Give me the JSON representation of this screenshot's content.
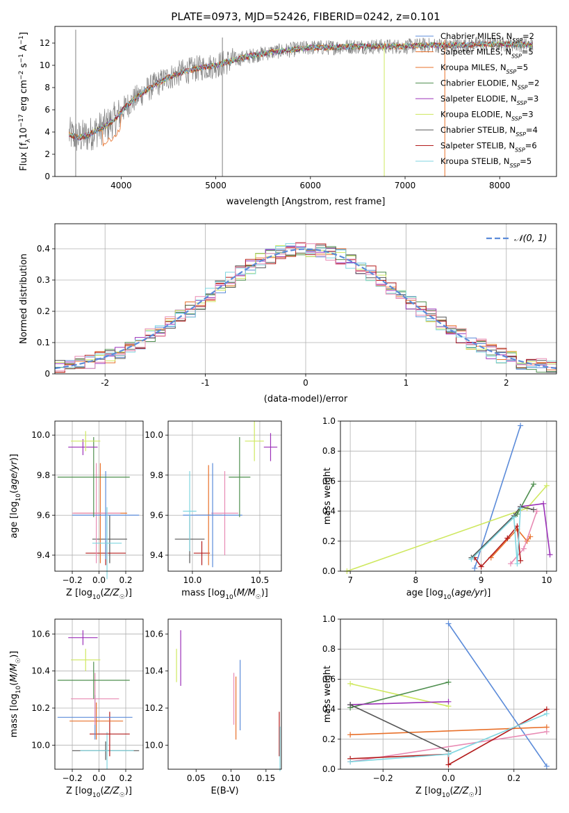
{
  "figure": {
    "title": "PLATE=0973, MJD=52426, FIBERID=0242, z=0.101"
  },
  "model_colors": {
    "Chabrier MILES": "#5b8bd9",
    "Salpeter MILES": "#e8702a",
    "Kroupa MILES": "#e8702a",
    "Chabrier ELODIE": "#4f8f4f",
    "Salpeter ELODIE": "#9b30b8",
    "Kroupa ELODIE": "#cfe860",
    "Chabrier STELIB": "#555555",
    "Salpeter STELIB": "#b31b1b",
    "Kroupa STELIB": "#7fd6e0",
    "extra_pink": "#e88ab3",
    "data_spectrum": "#808080"
  },
  "chart_data": [
    {
      "id": "spectrum",
      "type": "line",
      "title": "PLATE=0973, MJD=52426, FIBERID=0242, z=0.101",
      "xlabel": "wavelength [Angstrom, rest frame]",
      "ylabel": "Flux [f_λ10^-17 erg cm^-2 s^-1 A^-1]",
      "xlim": [
        3300,
        8600
      ],
      "ylim": [
        0,
        13.5
      ],
      "xticks": [
        4000,
        5000,
        6000,
        7000,
        8000
      ],
      "yticks": [
        0,
        2,
        4,
        6,
        8,
        10,
        12
      ],
      "grid": false,
      "legend_position": "top-right",
      "legend": [
        {
          "label": "Chabrier MILES, N",
          "sub": "SSP",
          "n": "=2",
          "color": "#5b8bd9"
        },
        {
          "label": "Salpeter MILES, N",
          "sub": "SSP",
          "n": "=5",
          "color": "#e8702a"
        },
        {
          "label": "Kroupa MILES, N",
          "sub": "SSP",
          "n": "=5",
          "color": "#e8702a"
        },
        {
          "label": "Chabrier ELODIE, N",
          "sub": "SSP",
          "n": "=2",
          "color": "#4f8f4f"
        },
        {
          "label": "Salpeter ELODIE, N",
          "sub": "SSP",
          "n": "=3",
          "color": "#9b30b8"
        },
        {
          "label": "Kroupa ELODIE, N",
          "sub": "SSP",
          "n": "=3",
          "color": "#cfe860"
        },
        {
          "label": "Chabrier STELIB, N",
          "sub": "SSP",
          "n": "=4",
          "color": "#555555"
        },
        {
          "label": "Salpeter STELIB, N",
          "sub": "SSP",
          "n": "=6",
          "color": "#b31b1b"
        },
        {
          "label": "Kroupa STELIB, N",
          "sub": "SSP",
          "n": "=5",
          "color": "#7fd6e0"
        }
      ],
      "continuum_x": [
        3450,
        3550,
        3650,
        3750,
        3850,
        3950,
        4050,
        4150,
        4250,
        4350,
        4500,
        4650,
        4800,
        5000,
        5200,
        5400,
        5600,
        5800,
        6000,
        6200,
        6400,
        6600,
        6800,
        7000,
        7200,
        7400,
        7600,
        7800,
        8000,
        8200,
        8350
      ],
      "continuum_y": [
        3.8,
        3.5,
        3.7,
        4.2,
        4.6,
        5.3,
        6.3,
        7.0,
        7.7,
        8.2,
        8.9,
        9.4,
        9.7,
        10.0,
        10.5,
        10.9,
        11.2,
        11.4,
        11.6,
        11.6,
        11.7,
        11.7,
        11.7,
        11.7,
        11.8,
        11.8,
        11.8,
        11.9,
        11.9,
        11.9,
        11.8
      ],
      "spikes": [
        {
          "x": 3520,
          "y0": 0,
          "y1": 13.2,
          "color": "#808080"
        },
        {
          "x": 5070,
          "y0": 0,
          "y1": 12.5,
          "color": "#808080"
        },
        {
          "x": 6780,
          "y0": 0,
          "y1": 12.0,
          "color": "#cfe860"
        },
        {
          "x": 7420,
          "y0": 0,
          "y1": 12.3,
          "color": "#e8702a"
        }
      ]
    },
    {
      "id": "residual_histogram",
      "type": "histogram",
      "xlabel": "(data-model)/error",
      "ylabel": "Normed distribution",
      "xlim": [
        -2.5,
        2.5
      ],
      "ylim": [
        0,
        0.48
      ],
      "xticks": [
        -2,
        -1,
        0,
        1,
        2
      ],
      "yticks": [
        0.0,
        0.1,
        0.2,
        0.3,
        0.4
      ],
      "grid": true,
      "legend_position": "top-right",
      "reference_curve": {
        "label": "N(0,1)",
        "color": "#5b8bd9",
        "style": "dashed"
      },
      "bin_width": 0.1,
      "bin_start": -2.5
    },
    {
      "id": "age_vs_Z",
      "type": "errorbar",
      "xlabel": "Z [log10(Z/Z☉)]",
      "ylabel": "age  [log10(age/yr)]",
      "xlim": [
        -0.33,
        0.33
      ],
      "ylim": [
        9.32,
        10.07
      ],
      "xticks": [
        -0.2,
        0.0,
        0.2
      ],
      "xticklabels": [
        "−0.2",
        "0.0",
        "0.2"
      ],
      "yticks": [
        9.4,
        9.6,
        9.8,
        10.0
      ],
      "grid": true,
      "points": [
        {
          "x": 0.08,
          "y": 9.48,
          "xerr": 0.13,
          "yerr": 0.12,
          "color": "#555555"
        },
        {
          "x": 0.05,
          "y": 9.41,
          "xerr": 0.15,
          "yerr": 0.06,
          "color": "#b31b1b"
        },
        {
          "x": 0.01,
          "y": 9.61,
          "xerr": 0.2,
          "yerr": 0.25,
          "color": "#e8702a"
        },
        {
          "x": -0.02,
          "y": 9.61,
          "xerr": 0.18,
          "yerr": 0.25,
          "color": "#e88ab3"
        },
        {
          "x": 0.05,
          "y": 9.6,
          "xerr": 0.25,
          "yerr": 0.22,
          "color": "#5b8bd9"
        },
        {
          "x": 0.06,
          "y": 9.46,
          "xerr": 0.11,
          "yerr": 0.18,
          "color": "#7fd6e0"
        },
        {
          "x": -0.04,
          "y": 9.79,
          "xerr": 0.27,
          "yerr": 0.2,
          "color": "#4f8f4f"
        },
        {
          "x": -0.12,
          "y": 9.94,
          "xerr": 0.11,
          "yerr": 0.04,
          "color": "#9b30b8"
        },
        {
          "x": -0.1,
          "y": 9.97,
          "xerr": 0.11,
          "yerr": 0.05,
          "color": "#cfe860"
        }
      ]
    },
    {
      "id": "age_vs_mass",
      "type": "errorbar",
      "xlabel": "mass [log10(M/M☉)]",
      "ylabel": "",
      "xlim": [
        9.82,
        10.66
      ],
      "ylim": [
        9.32,
        10.07
      ],
      "xticks": [
        10.0,
        10.5
      ],
      "xticklabels": [
        "10.0",
        "10.5"
      ],
      "yticks": [
        9.4,
        9.6,
        9.8,
        10.0
      ],
      "grid": true,
      "points": [
        {
          "x": 9.98,
          "y": 9.48,
          "xerr": 0.11,
          "yerr": 0.12,
          "color": "#555555"
        },
        {
          "x": 10.07,
          "y": 9.41,
          "xerr": 0.06,
          "yerr": 0.06,
          "color": "#b31b1b"
        },
        {
          "x": 10.12,
          "y": 9.6,
          "xerr": 0.1,
          "yerr": 0.25,
          "color": "#e8702a"
        },
        {
          "x": 10.24,
          "y": 9.61,
          "xerr": 0.1,
          "yerr": 0.21,
          "color": "#e88ab3"
        },
        {
          "x": 10.15,
          "y": 9.6,
          "xerr": 0.22,
          "yerr": 0.26,
          "color": "#5b8bd9"
        },
        {
          "x": 9.98,
          "y": 9.62,
          "xerr": 0.05,
          "yerr": 0.2,
          "color": "#7fd6e0"
        },
        {
          "x": 10.35,
          "y": 9.79,
          "xerr": 0.08,
          "yerr": 0.2,
          "color": "#4f8f4f"
        },
        {
          "x": 10.58,
          "y": 9.94,
          "xerr": 0.05,
          "yerr": 0.07,
          "color": "#9b30b8"
        },
        {
          "x": 10.46,
          "y": 9.97,
          "xerr": 0.07,
          "yerr": 0.1,
          "color": "#cfe860"
        }
      ]
    },
    {
      "id": "weight_vs_age",
      "type": "line",
      "xlabel": "age  [log10(age/yr)]",
      "ylabel": "mass weight",
      "xlim": [
        6.85,
        10.15
      ],
      "ylim": [
        0,
        1.0
      ],
      "xticks": [
        7,
        8,
        9,
        10
      ],
      "yticks": [
        0.0,
        0.2,
        0.4,
        0.6,
        0.8,
        1.0
      ],
      "grid": true,
      "series": [
        {
          "color": "#5b8bd9",
          "x": [
            8.9,
            9.6
          ],
          "y": [
            0.02,
            0.97
          ]
        },
        {
          "color": "#cfe860",
          "x": [
            6.95,
            9.7,
            10.0
          ],
          "y": [
            0.0,
            0.42,
            0.57
          ]
        },
        {
          "color": "#4f8f4f",
          "x": [
            8.85,
            9.55,
            9.8
          ],
          "y": [
            0.09,
            0.38,
            0.58
          ]
        },
        {
          "color": "#9b30b8",
          "x": [
            9.6,
            9.95,
            10.05
          ],
          "y": [
            0.43,
            0.45,
            0.11
          ]
        },
        {
          "color": "#e8702a",
          "x": [
            9.15,
            9.55,
            9.7,
            9.75
          ],
          "y": [
            0.09,
            0.28,
            0.2,
            0.23
          ]
        },
        {
          "color": "#e88ab3",
          "x": [
            9.45,
            9.65,
            9.85
          ],
          "y": [
            0.05,
            0.15,
            0.4
          ]
        },
        {
          "color": "#b31b1b",
          "x": [
            8.9,
            9.0,
            9.4,
            9.55,
            9.6
          ],
          "y": [
            0.09,
            0.03,
            0.22,
            0.3,
            0.07
          ]
        },
        {
          "color": "#555555",
          "x": [
            8.85,
            9.5,
            9.6,
            9.8
          ],
          "y": [
            0.09,
            0.37,
            0.43,
            0.41
          ]
        },
        {
          "color": "#7fd6e0",
          "x": [
            8.85,
            9.5,
            9.55,
            9.6
          ],
          "y": [
            0.08,
            0.36,
            0.05,
            0.42
          ]
        }
      ]
    },
    {
      "id": "mass_vs_Z",
      "type": "errorbar",
      "xlabel": "Z [log10(Z/Z☉)]",
      "ylabel": "mass [log10(M/M☉)]",
      "xlim": [
        -0.33,
        0.33
      ],
      "ylim": [
        9.87,
        10.68
      ],
      "xticks": [
        -0.2,
        0.0,
        0.2
      ],
      "xticklabels": [
        "−0.2",
        "0.0",
        "0.2"
      ],
      "yticks": [
        10.0,
        10.2,
        10.4,
        10.6
      ],
      "grid": true,
      "points": [
        {
          "x": 0.05,
          "y": 9.97,
          "xerr": 0.25,
          "yerr": 0.05,
          "color": "#555555"
        },
        {
          "x": 0.06,
          "y": 9.97,
          "xerr": 0.2,
          "yerr": 0.1,
          "color": "#7fd6e0"
        },
        {
          "x": 0.08,
          "y": 10.06,
          "xerr": 0.15,
          "yerr": 0.12,
          "color": "#b31b1b"
        },
        {
          "x": -0.02,
          "y": 10.13,
          "xerr": 0.2,
          "yerr": 0.1,
          "color": "#e8702a"
        },
        {
          "x": -0.03,
          "y": 10.15,
          "xerr": 0.28,
          "yerr": 0.12,
          "color": "#5b8bd9"
        },
        {
          "x": -0.03,
          "y": 10.25,
          "xerr": 0.18,
          "yerr": 0.14,
          "color": "#e88ab3"
        },
        {
          "x": -0.04,
          "y": 10.35,
          "xerr": 0.27,
          "yerr": 0.1,
          "color": "#4f8f4f"
        },
        {
          "x": -0.1,
          "y": 10.46,
          "xerr": 0.11,
          "yerr": 0.06,
          "color": "#cfe860"
        },
        {
          "x": -0.12,
          "y": 10.58,
          "xerr": 0.11,
          "yerr": 0.04,
          "color": "#9b30b8"
        }
      ]
    },
    {
      "id": "mass_vs_ebv",
      "type": "errorbar",
      "xlabel": "E(B-V)",
      "ylabel": "",
      "xlim": [
        0.01,
        0.172
      ],
      "ylim": [
        9.87,
        10.68
      ],
      "xticks": [
        0.05,
        0.1,
        0.15
      ],
      "xticklabels": [
        "0.05",
        "0.10",
        "0.15"
      ],
      "yticks": [
        10.0,
        10.2,
        10.4,
        10.6
      ],
      "grid": false,
      "points": [
        {
          "x": 0.022,
          "y": 10.43,
          "xerr": 0,
          "yerr": 0.09,
          "color": "#cfe860"
        },
        {
          "x": 0.028,
          "y": 10.47,
          "xerr": 0,
          "yerr": 0.15,
          "color": "#9b30b8"
        },
        {
          "x": 0.104,
          "y": 10.25,
          "xerr": 0,
          "yerr": 0.14,
          "color": "#e88ab3"
        },
        {
          "x": 0.107,
          "y": 10.2,
          "xerr": 0,
          "yerr": 0.17,
          "color": "#e8702a"
        },
        {
          "x": 0.113,
          "y": 10.27,
          "xerr": 0,
          "yerr": 0.19,
          "color": "#5b8bd9"
        },
        {
          "x": 0.169,
          "y": 10.06,
          "xerr": 0,
          "yerr": 0.12,
          "color": "#b31b1b"
        },
        {
          "x": 0.17,
          "y": 9.98,
          "xerr": 0,
          "yerr": 0.12,
          "color": "#7fd6e0"
        }
      ]
    },
    {
      "id": "weight_vs_Z",
      "type": "line",
      "xlabel": "Z [log10(Z/Z☉)]",
      "ylabel": "mass weight",
      "xlim": [
        -0.33,
        0.33
      ],
      "ylim": [
        0,
        1.0
      ],
      "xticks": [
        -0.2,
        0.0,
        0.2
      ],
      "xticklabels": [
        "−0.2",
        "0.0",
        "0.2"
      ],
      "yticks": [
        0.0,
        0.2,
        0.4,
        0.6,
        0.8,
        1.0
      ],
      "grid": true,
      "series": [
        {
          "color": "#5b8bd9",
          "x": [
            0.0,
            0.3
          ],
          "y": [
            0.97,
            0.02
          ]
        },
        {
          "color": "#cfe860",
          "x": [
            -0.3,
            0.0
          ],
          "y": [
            0.57,
            0.42
          ]
        },
        {
          "color": "#4f8f4f",
          "x": [
            -0.3,
            0.0
          ],
          "y": [
            0.41,
            0.58
          ]
        },
        {
          "color": "#9b30b8",
          "x": [
            -0.3,
            0.0
          ],
          "y": [
            0.43,
            0.45
          ]
        },
        {
          "color": "#e8702a",
          "x": [
            -0.3,
            0.3
          ],
          "y": [
            0.23,
            0.28
          ]
        },
        {
          "color": "#e88ab3",
          "x": [
            -0.3,
            0.3
          ],
          "y": [
            0.05,
            0.25
          ]
        },
        {
          "color": "#b31b1b",
          "x": [
            -0.3,
            0.0,
            0.0,
            0.3
          ],
          "y": [
            0.07,
            0.1,
            0.03,
            0.4
          ]
        },
        {
          "color": "#555555",
          "x": [
            -0.3,
            0.0
          ],
          "y": [
            0.43,
            0.12
          ]
        },
        {
          "color": "#7fd6e0",
          "x": [
            -0.3,
            0.0,
            0.3
          ],
          "y": [
            0.05,
            0.1,
            0.37
          ]
        }
      ]
    }
  ]
}
